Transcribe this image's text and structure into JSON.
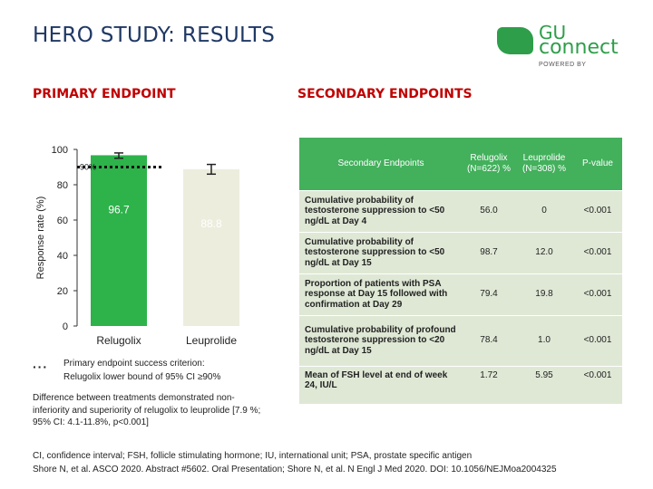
{
  "title": "HERO STUDY: RESULTS",
  "logo": {
    "line1": "GU",
    "line2": "connect",
    "sub": "POWERED BY"
  },
  "primary": {
    "heading": "PRIMARY ENDPOINT"
  },
  "secondary": {
    "heading": "SECONDARY ENDPOINTS"
  },
  "chart_data": {
    "type": "bar",
    "categories": [
      "Relugolix",
      "Leuprolide"
    ],
    "values": [
      96.7,
      88.8
    ],
    "error_upper": [
      98.0,
      91.5
    ],
    "error_lower": [
      95.0,
      86.0
    ],
    "data_labels": [
      "96.7",
      "88.8"
    ],
    "ylabel": "Response rate (%)",
    "ylim": [
      0,
      100
    ],
    "yticks": [
      "0",
      "20",
      "40",
      "60",
      "80",
      "100"
    ],
    "reference_line": {
      "value": 90,
      "label": "90%"
    },
    "colors": [
      "#2db34a",
      "#ededde"
    ],
    "label_colors": [
      "#ffffff",
      "#ffffff"
    ],
    "grid": false
  },
  "legend": {
    "symbol": "···",
    "text_line1": "Primary endpoint success criterion:",
    "text_line2": "Relugolix lower bound of 95% CI ≥90%"
  },
  "difference_note": "Difference between treatments demonstrated non-inferiority and superiority of relugolix to leuprolide [7.9 %; 95% CI: 4.1-11.8%, p<0.001]",
  "table": {
    "headers": [
      "Secondary Endpoints",
      "Relugolix (N=622) %",
      "Leuprolide (N=308) %",
      "P-value"
    ],
    "rows": [
      [
        "Cumulative probability of testosterone suppression to <50 ng/dL at Day 4",
        "56.0",
        "0",
        "<0.001"
      ],
      [
        "Cumulative probability of testosterone suppression to <50 ng/dL at Day 15",
        "98.7",
        "12.0",
        "<0.001"
      ],
      [
        "Proportion of patients with PSA response at Day 15 followed with confirmation at Day 29",
        "79.4",
        "19.8",
        "<0.001"
      ],
      [
        "Cumulative probability of profound testosterone suppression to <20 ng/dL at Day 15",
        "78.4",
        "1.0",
        "<0.001"
      ],
      [
        "Mean of FSH level at end of week 24, IU/L",
        "1.72",
        "5.95",
        "<0.001"
      ]
    ]
  },
  "footer": {
    "line1": "CI, confidence interval; FSH, follicle stimulating hormone; IU, international unit; PSA, prostate specific antigen",
    "line2": "Shore N, et al. ASCO 2020. Abstract #5602. Oral Presentation; Shore N, et al. N Engl J Med 2020. DOI: 10.1056/NEJMoa2004325"
  }
}
